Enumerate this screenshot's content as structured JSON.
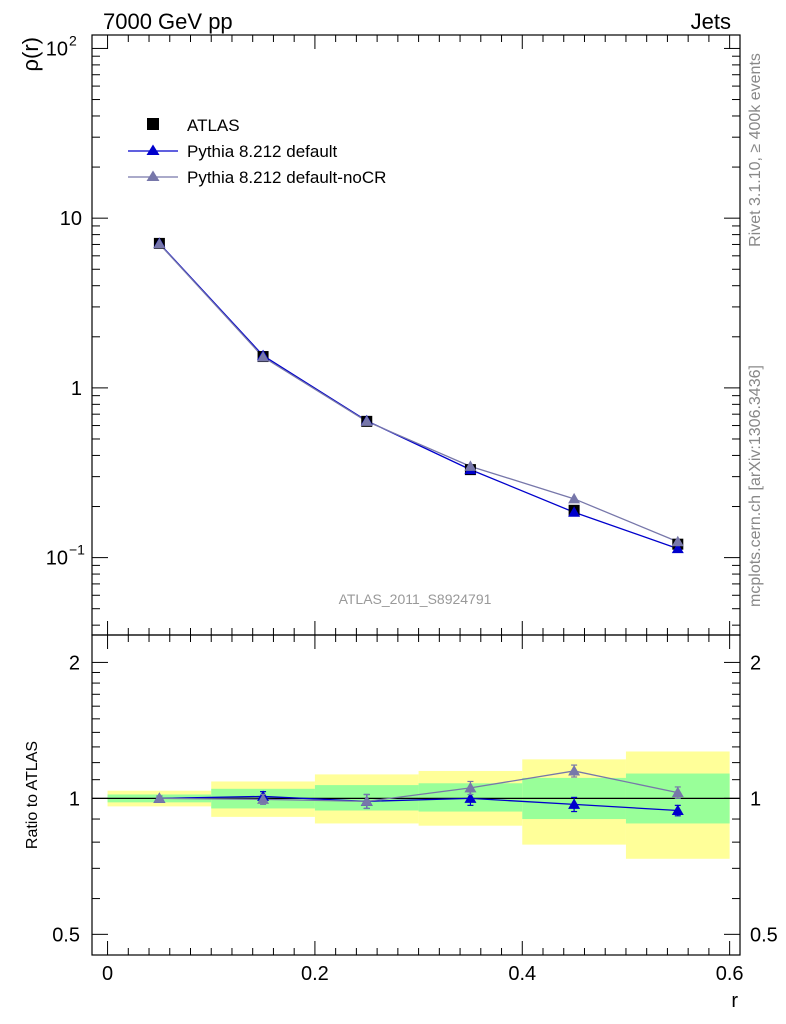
{
  "header": {
    "left": "7000 GeV pp",
    "right": "Jets"
  },
  "side_labels": {
    "rivet": "Rivet 3.1.10, ≥ 400k events",
    "mcplots": "mcplots.cern.ch [arXiv:1306.3436]"
  },
  "watermark": "ATLAS_2011_S8924791",
  "colors": {
    "data": "#000000",
    "pythia_default": "#0000cc",
    "pythia_nocr": "#7777aa",
    "band_inner": "#99ff99",
    "band_outer": "#ffff99"
  },
  "legend": {
    "items": [
      {
        "label": "ATLAS",
        "marker": "square"
      },
      {
        "label": "Pythia 8.212 default",
        "marker": "triangle"
      },
      {
        "label": "Pythia 8.212 default-noCR",
        "marker": "triangle"
      }
    ]
  },
  "chart_data": [
    {
      "type": "line",
      "title": "",
      "ylabel": "ρ(r)",
      "xlabel": "",
      "yscale": "log",
      "ylim": [
        0.035,
        120
      ],
      "xlim": [
        -0.015,
        0.61
      ],
      "y_ticks": [
        {
          "v": 0.1,
          "base": "10",
          "exp": "−1"
        },
        {
          "v": 1,
          "base": "1",
          "exp": ""
        },
        {
          "v": 10,
          "base": "10",
          "exp": ""
        },
        {
          "v": 100,
          "base": "10",
          "exp": "2"
        }
      ],
      "x": [
        0.05,
        0.15,
        0.25,
        0.35,
        0.45,
        0.55
      ],
      "series": [
        {
          "name": "ATLAS",
          "values": [
            7.1,
            1.53,
            0.635,
            0.33,
            0.19,
            0.12
          ]
        },
        {
          "name": "Pythia 8.212 default",
          "values": [
            7.1,
            1.55,
            0.64,
            0.33,
            0.185,
            0.113
          ]
        },
        {
          "name": "Pythia 8.212 default-noCR",
          "values": [
            7.05,
            1.52,
            0.635,
            0.345,
            0.222,
            0.124
          ]
        }
      ]
    },
    {
      "type": "line",
      "title": "",
      "ylabel": "Ratio to ATLAS",
      "xlabel": "r",
      "yscale": "log",
      "ylim": [
        0.45,
        2.3
      ],
      "xlim": [
        -0.015,
        0.61
      ],
      "y_ticks": [
        {
          "v": 0.5,
          "label": "0.5"
        },
        {
          "v": 1,
          "label": "1"
        },
        {
          "v": 2,
          "label": "2"
        }
      ],
      "x_ticks": [
        {
          "v": 0,
          "label": "0"
        },
        {
          "v": 0.2,
          "label": "0.2"
        },
        {
          "v": 0.4,
          "label": "0.4"
        },
        {
          "v": 0.6,
          "label": "0.6"
        }
      ],
      "bins": [
        {
          "lo": 0.0,
          "hi": 0.1,
          "inner": [
            0.98,
            1.02
          ],
          "outer": [
            0.96,
            1.04
          ]
        },
        {
          "lo": 0.1,
          "hi": 0.2,
          "inner": [
            0.95,
            1.05
          ],
          "outer": [
            0.91,
            1.09
          ]
        },
        {
          "lo": 0.2,
          "hi": 0.3,
          "inner": [
            0.94,
            1.07
          ],
          "outer": [
            0.88,
            1.13
          ]
        },
        {
          "lo": 0.3,
          "hi": 0.4,
          "inner": [
            0.935,
            1.08
          ],
          "outer": [
            0.87,
            1.15
          ]
        },
        {
          "lo": 0.4,
          "hi": 0.5,
          "inner": [
            0.9,
            1.11
          ],
          "outer": [
            0.79,
            1.22
          ]
        },
        {
          "lo": 0.5,
          "hi": 0.6,
          "inner": [
            0.88,
            1.135
          ],
          "outer": [
            0.735,
            1.27
          ]
        }
      ],
      "x": [
        0.05,
        0.15,
        0.25,
        0.35,
        0.45,
        0.55
      ],
      "series": [
        {
          "name": "Pythia 8.212 default",
          "values": [
            1.0,
            1.01,
            0.985,
            1.0,
            0.97,
            0.94
          ],
          "errors": [
            0.012,
            0.025,
            0.035,
            0.035,
            0.035,
            0.025
          ]
        },
        {
          "name": "Pythia 8.212 default-noCR",
          "values": [
            1.0,
            0.995,
            0.985,
            1.055,
            1.15,
            1.03
          ],
          "errors": [
            0.012,
            0.025,
            0.035,
            0.035,
            0.035,
            0.03
          ]
        }
      ]
    }
  ]
}
